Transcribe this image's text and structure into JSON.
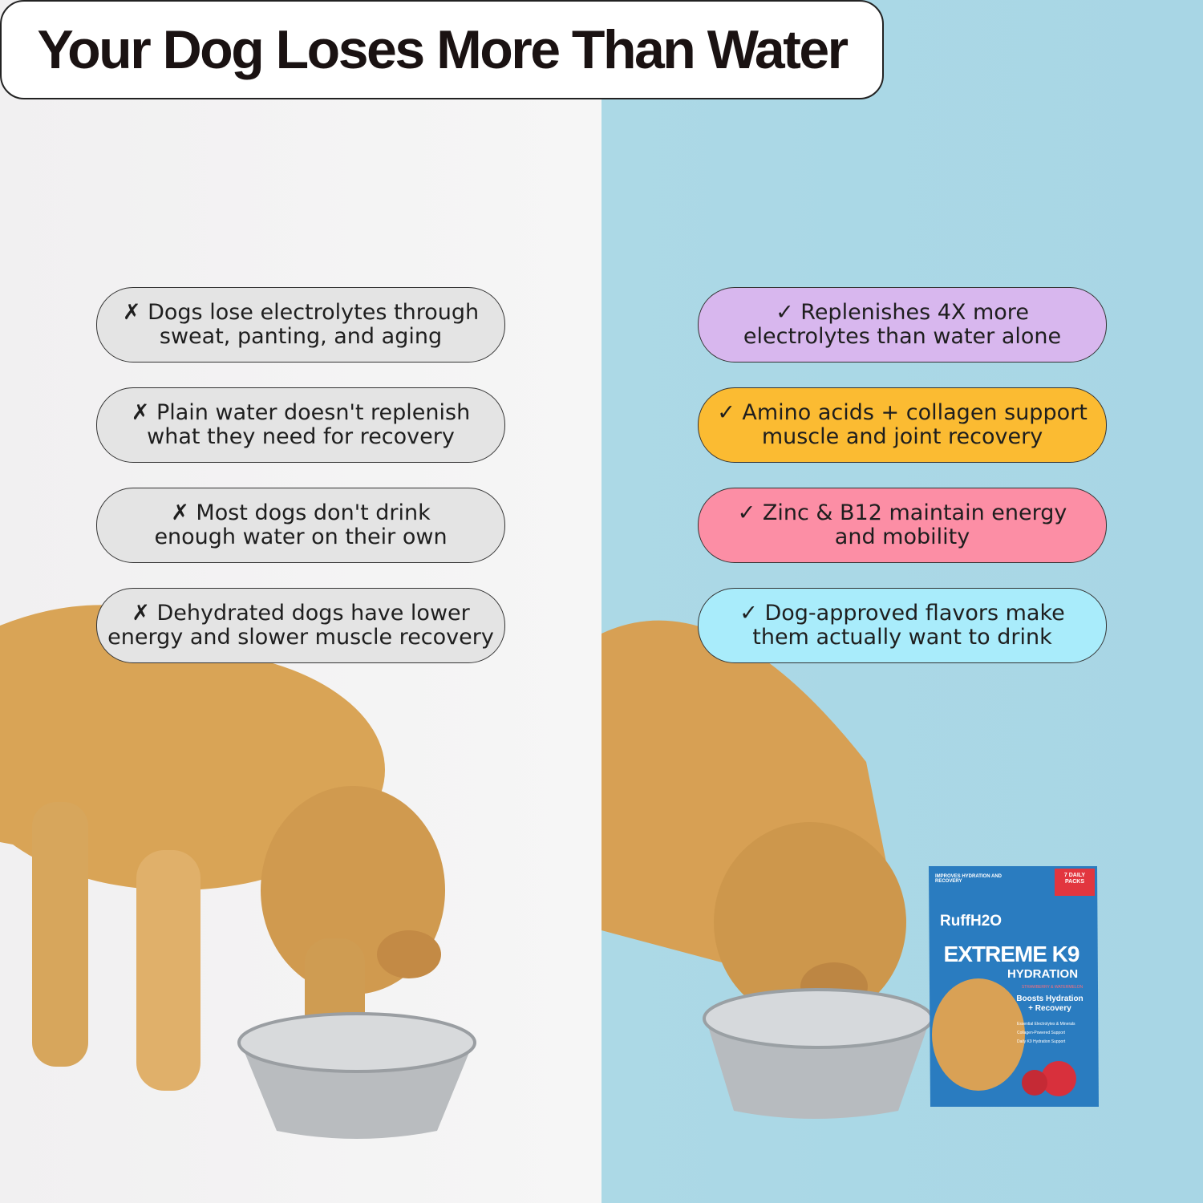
{
  "header": {
    "title": "Your Dog Loses More Than Water"
  },
  "left_items": [
    {
      "lines": [
        "✗ Dogs lose electrolytes through",
        "sweat, panting, and aging"
      ]
    },
    {
      "lines": [
        "✗ Plain water doesn't replenish",
        "what they need for recovery"
      ]
    },
    {
      "lines": [
        "✗ Most dogs don't drink",
        "enough water on their own"
      ]
    },
    {
      "lines": [
        "✗ Dehydrated dogs have lower",
        "energy and slower muscle recovery"
      ]
    }
  ],
  "right_items": [
    {
      "lines": [
        "✓ Replenishes 4X more",
        "electrolytes than water alone"
      ]
    },
    {
      "lines": [
        "✓ Amino acids + collagen support",
        "muscle and joint recovery"
      ]
    },
    {
      "lines": [
        "✓ Zinc & B12 maintain energy",
        "and mobility"
      ]
    },
    {
      "lines": [
        "✓ Dog-approved flavors make",
        "them actually want to drink"
      ]
    }
  ],
  "product": {
    "tagline": "IMPROVES HYDRATION AND RECOVERY",
    "packs": "7 DAILY PACKS",
    "brand": "RuffH2O",
    "name": "EXTREME K9",
    "subname": "HYDRATION",
    "flavor": "STRAWBERRY & WATERMELON",
    "benefit": "Boosts Hydration + Recovery",
    "bullets": [
      "Essential Electrolytes & Minerals",
      "Collagen-Powered Support",
      "Daily K9 Hydration Support"
    ]
  }
}
